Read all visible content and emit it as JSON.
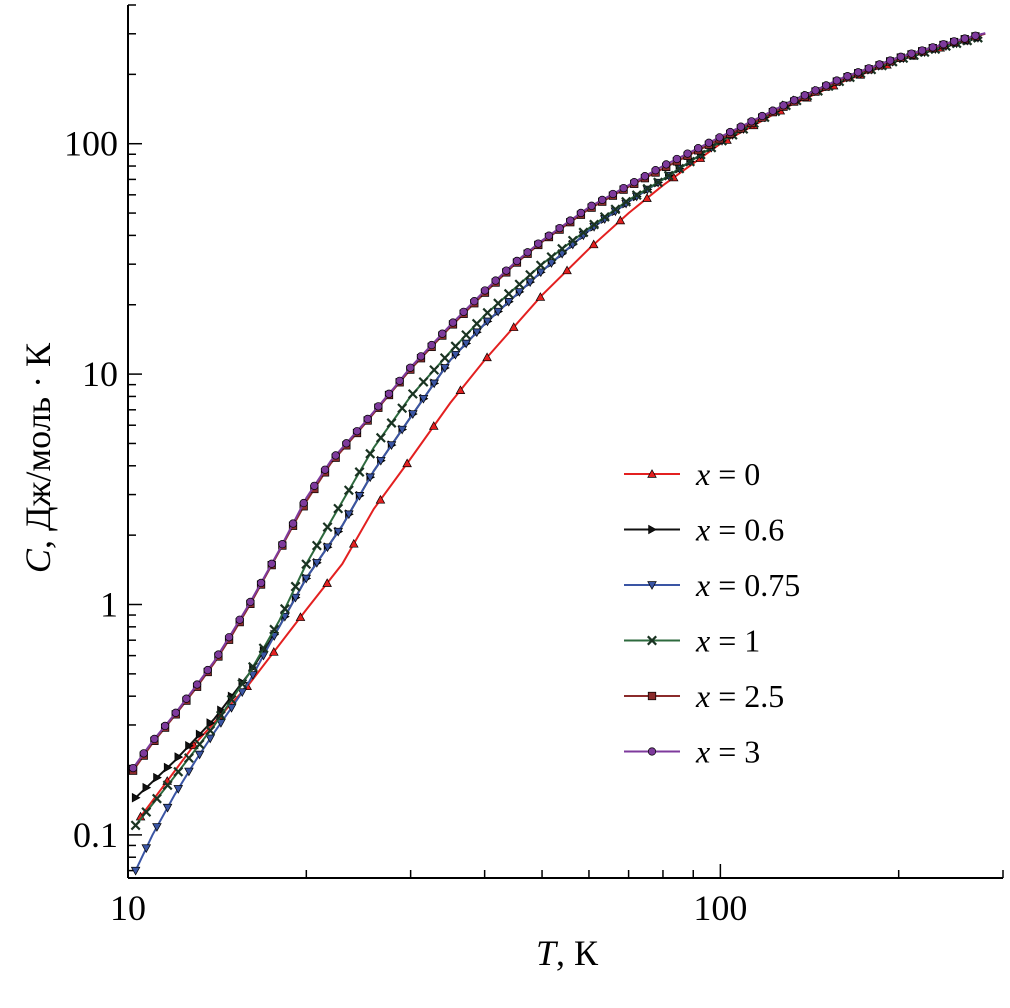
{
  "chart_data": {
    "type": "line",
    "x_scale": "log",
    "y_scale": "log",
    "xlim": [
      10,
      300
    ],
    "ylim": [
      0.065,
      400
    ],
    "grid": false,
    "legend_position": "right-center",
    "xlabel": {
      "var": "T",
      "rest": ", К"
    },
    "ylabel": {
      "var": "C",
      "rest": ", Дж/моль · К"
    },
    "x_ticks": [
      {
        "value": 10,
        "label": "10"
      },
      {
        "value": 100,
        "label": "100"
      }
    ],
    "y_ticks": [
      {
        "value": 0.1,
        "label": "0.1"
      },
      {
        "value": 1,
        "label": "1"
      },
      {
        "value": 10,
        "label": "10"
      },
      {
        "value": 100,
        "label": "100"
      }
    ],
    "series": [
      {
        "name_var": "x",
        "name_rest": " = 0",
        "color": "#e32020",
        "marker": "triangle-up",
        "x": [
          10.5,
          13,
          16,
          20,
          23,
          26,
          30,
          35,
          40,
          50,
          60,
          70,
          80,
          100,
          130,
          160,
          200,
          240,
          275
        ],
        "y": [
          0.12,
          0.25,
          0.45,
          0.95,
          1.5,
          2.6,
          4.3,
          7.5,
          11.5,
          22,
          35,
          50,
          66,
          100,
          145,
          185,
          230,
          265,
          290
        ]
      },
      {
        "name_var": "x",
        "name_rest": " = 0.6",
        "color": "#111111",
        "marker": "triangle-right",
        "x": [
          10.3,
          12,
          14,
          16,
          18,
          20,
          23,
          26,
          30,
          35,
          40,
          50,
          60,
          70,
          80,
          100,
          130,
          160,
          200,
          240,
          275
        ],
        "y": [
          0.145,
          0.21,
          0.32,
          0.5,
          0.8,
          1.3,
          2.2,
          3.8,
          6.5,
          11.5,
          16.5,
          28,
          42,
          56,
          70,
          102,
          148,
          188,
          232,
          265,
          290
        ]
      },
      {
        "name_var": "x",
        "name_rest": " = 0.75",
        "color": "#3a55a4",
        "marker": "triangle-down",
        "x": [
          10.3,
          11,
          12,
          13,
          14,
          15,
          16,
          18,
          20,
          23,
          26,
          30,
          35,
          40,
          50,
          60,
          70,
          80,
          100,
          130,
          160,
          200,
          240,
          275
        ],
        "y": [
          0.07,
          0.1,
          0.15,
          0.21,
          0.28,
          0.36,
          0.46,
          0.8,
          1.3,
          2.2,
          3.8,
          6.5,
          11.5,
          16.5,
          28,
          42,
          56,
          70,
          102,
          148,
          188,
          232,
          265,
          290
        ]
      },
      {
        "name_var": "x",
        "name_rest": " = 1",
        "color": "#2d6a3e",
        "marker": "x",
        "x": [
          10.3,
          12,
          14,
          16,
          18,
          20,
          23,
          26,
          30,
          35,
          40,
          50,
          60,
          70,
          80,
          100,
          130,
          160,
          200,
          240,
          275
        ],
        "y": [
          0.11,
          0.18,
          0.3,
          0.5,
          0.85,
          1.5,
          2.8,
          4.8,
          8.0,
          12.5,
          18,
          30,
          43,
          57,
          70,
          102,
          148,
          188,
          232,
          265,
          290
        ]
      },
      {
        "name_var": "x",
        "name_rest": " = 2.5",
        "color": "#8b2b2b",
        "marker": "square",
        "x": [
          10.2,
          11,
          12,
          13,
          14,
          15,
          16,
          17,
          18,
          19,
          20,
          22,
          25,
          28,
          30,
          35,
          40,
          45,
          50,
          60,
          70,
          80,
          100,
          130,
          160,
          200,
          240,
          280
        ],
        "y": [
          0.19,
          0.25,
          0.33,
          0.43,
          0.56,
          0.74,
          0.98,
          1.3,
          1.7,
          2.2,
          2.8,
          4.1,
          6.0,
          8.5,
          10.5,
          16,
          22.5,
          30,
          37.5,
          52,
          65,
          78,
          105,
          148,
          190,
          235,
          270,
          300
        ]
      },
      {
        "name_var": "x",
        "name_rest": " = 3",
        "color": "#7e3a9c",
        "marker": "circle",
        "x": [
          10.2,
          11,
          12,
          13,
          14,
          15,
          16,
          17,
          18,
          19,
          20,
          22,
          25,
          28,
          30,
          35,
          40,
          45,
          50,
          60,
          70,
          80,
          100,
          130,
          160,
          200,
          240,
          280
        ],
        "y": [
          0.195,
          0.255,
          0.335,
          0.44,
          0.57,
          0.76,
          1.0,
          1.32,
          1.72,
          2.25,
          2.9,
          4.2,
          6.1,
          8.6,
          10.7,
          16.3,
          23,
          30.5,
          38,
          53,
          66,
          80,
          107,
          150,
          192,
          237,
          272,
          302
        ]
      }
    ]
  }
}
